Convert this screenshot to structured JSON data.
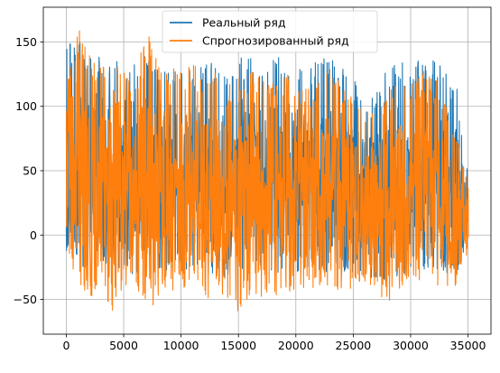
{
  "chart_data": {
    "type": "line",
    "title": "",
    "xlabel": "",
    "ylabel": "",
    "xlim": [
      -2000,
      37000
    ],
    "ylim": [
      -77,
      177
    ],
    "x_ticks": [
      0,
      5000,
      10000,
      15000,
      20000,
      25000,
      30000,
      35000
    ],
    "x_tick_labels": [
      "0",
      "5000",
      "10000",
      "15000",
      "20000",
      "25000",
      "30000",
      "35000"
    ],
    "y_ticks": [
      -50,
      0,
      50,
      100,
      150
    ],
    "y_tick_labels": [
      "−50",
      "0",
      "50",
      "100",
      "150"
    ],
    "grid": true,
    "legend_position": "top-center",
    "n_points": 35040,
    "series": [
      {
        "name": "Реальный ряд",
        "color": "#1f77b4",
        "envelope": {
          "x": [
            0,
            1000,
            2000,
            3000,
            4000,
            5000,
            6000,
            7000,
            8000,
            9000,
            10000,
            11000,
            12000,
            13000,
            14000,
            15000,
            16000,
            17000,
            18000,
            19000,
            20000,
            21000,
            22000,
            23000,
            24000,
            25000,
            26000,
            27000,
            28000,
            29000,
            30000,
            31000,
            32000,
            33000,
            34000,
            35000
          ],
          "max": [
            147,
            152,
            145,
            143,
            140,
            138,
            144,
            140,
            136,
            134,
            128,
            130,
            138,
            132,
            136,
            138,
            140,
            137,
            138,
            140,
            130,
            128,
            138,
            138,
            132,
            124,
            100,
            112,
            132,
            134,
            134,
            136,
            136,
            131,
            116,
            50
          ],
          "min": [
            -15,
            -28,
            -24,
            -22,
            -28,
            -32,
            -30,
            -30,
            -27,
            -28,
            -32,
            -25,
            -30,
            -33,
            -33,
            -26,
            -26,
            -30,
            -30,
            -28,
            -32,
            -31,
            -30,
            -29,
            -30,
            -30,
            -35,
            -36,
            -37,
            -36,
            -30,
            -27,
            -27,
            -30,
            -33,
            -10
          ]
        }
      },
      {
        "name": "Спрогнозированный ряд",
        "color": "#ff7f0e",
        "envelope": {
          "x": [
            0,
            1000,
            2000,
            3000,
            4000,
            5000,
            6000,
            7000,
            8000,
            9000,
            10000,
            11000,
            12000,
            13000,
            14000,
            15000,
            16000,
            17000,
            18000,
            19000,
            20000,
            21000,
            22000,
            23000,
            24000,
            25000,
            26000,
            27000,
            28000,
            29000,
            30000,
            31000,
            32000,
            33000,
            34000,
            35000
          ],
          "max": [
            130,
            162,
            140,
            130,
            164,
            130,
            125,
            160,
            145,
            130,
            128,
            135,
            120,
            128,
            120,
            125,
            130,
            125,
            120,
            130,
            112,
            115,
            122,
            130,
            120,
            108,
            95,
            100,
            110,
            120,
            120,
            128,
            125,
            105,
            80,
            42
          ],
          "min": [
            -15,
            -40,
            -52,
            -35,
            -64,
            -40,
            -35,
            -64,
            -47,
            -42,
            -45,
            -40,
            -52,
            -45,
            -48,
            -60,
            -50,
            -48,
            -50,
            -45,
            -44,
            -40,
            -45,
            -38,
            -48,
            -44,
            -36,
            -42,
            -55,
            -43,
            -37,
            -36,
            -40,
            -41,
            -40,
            -12
          ]
        }
      }
    ]
  }
}
